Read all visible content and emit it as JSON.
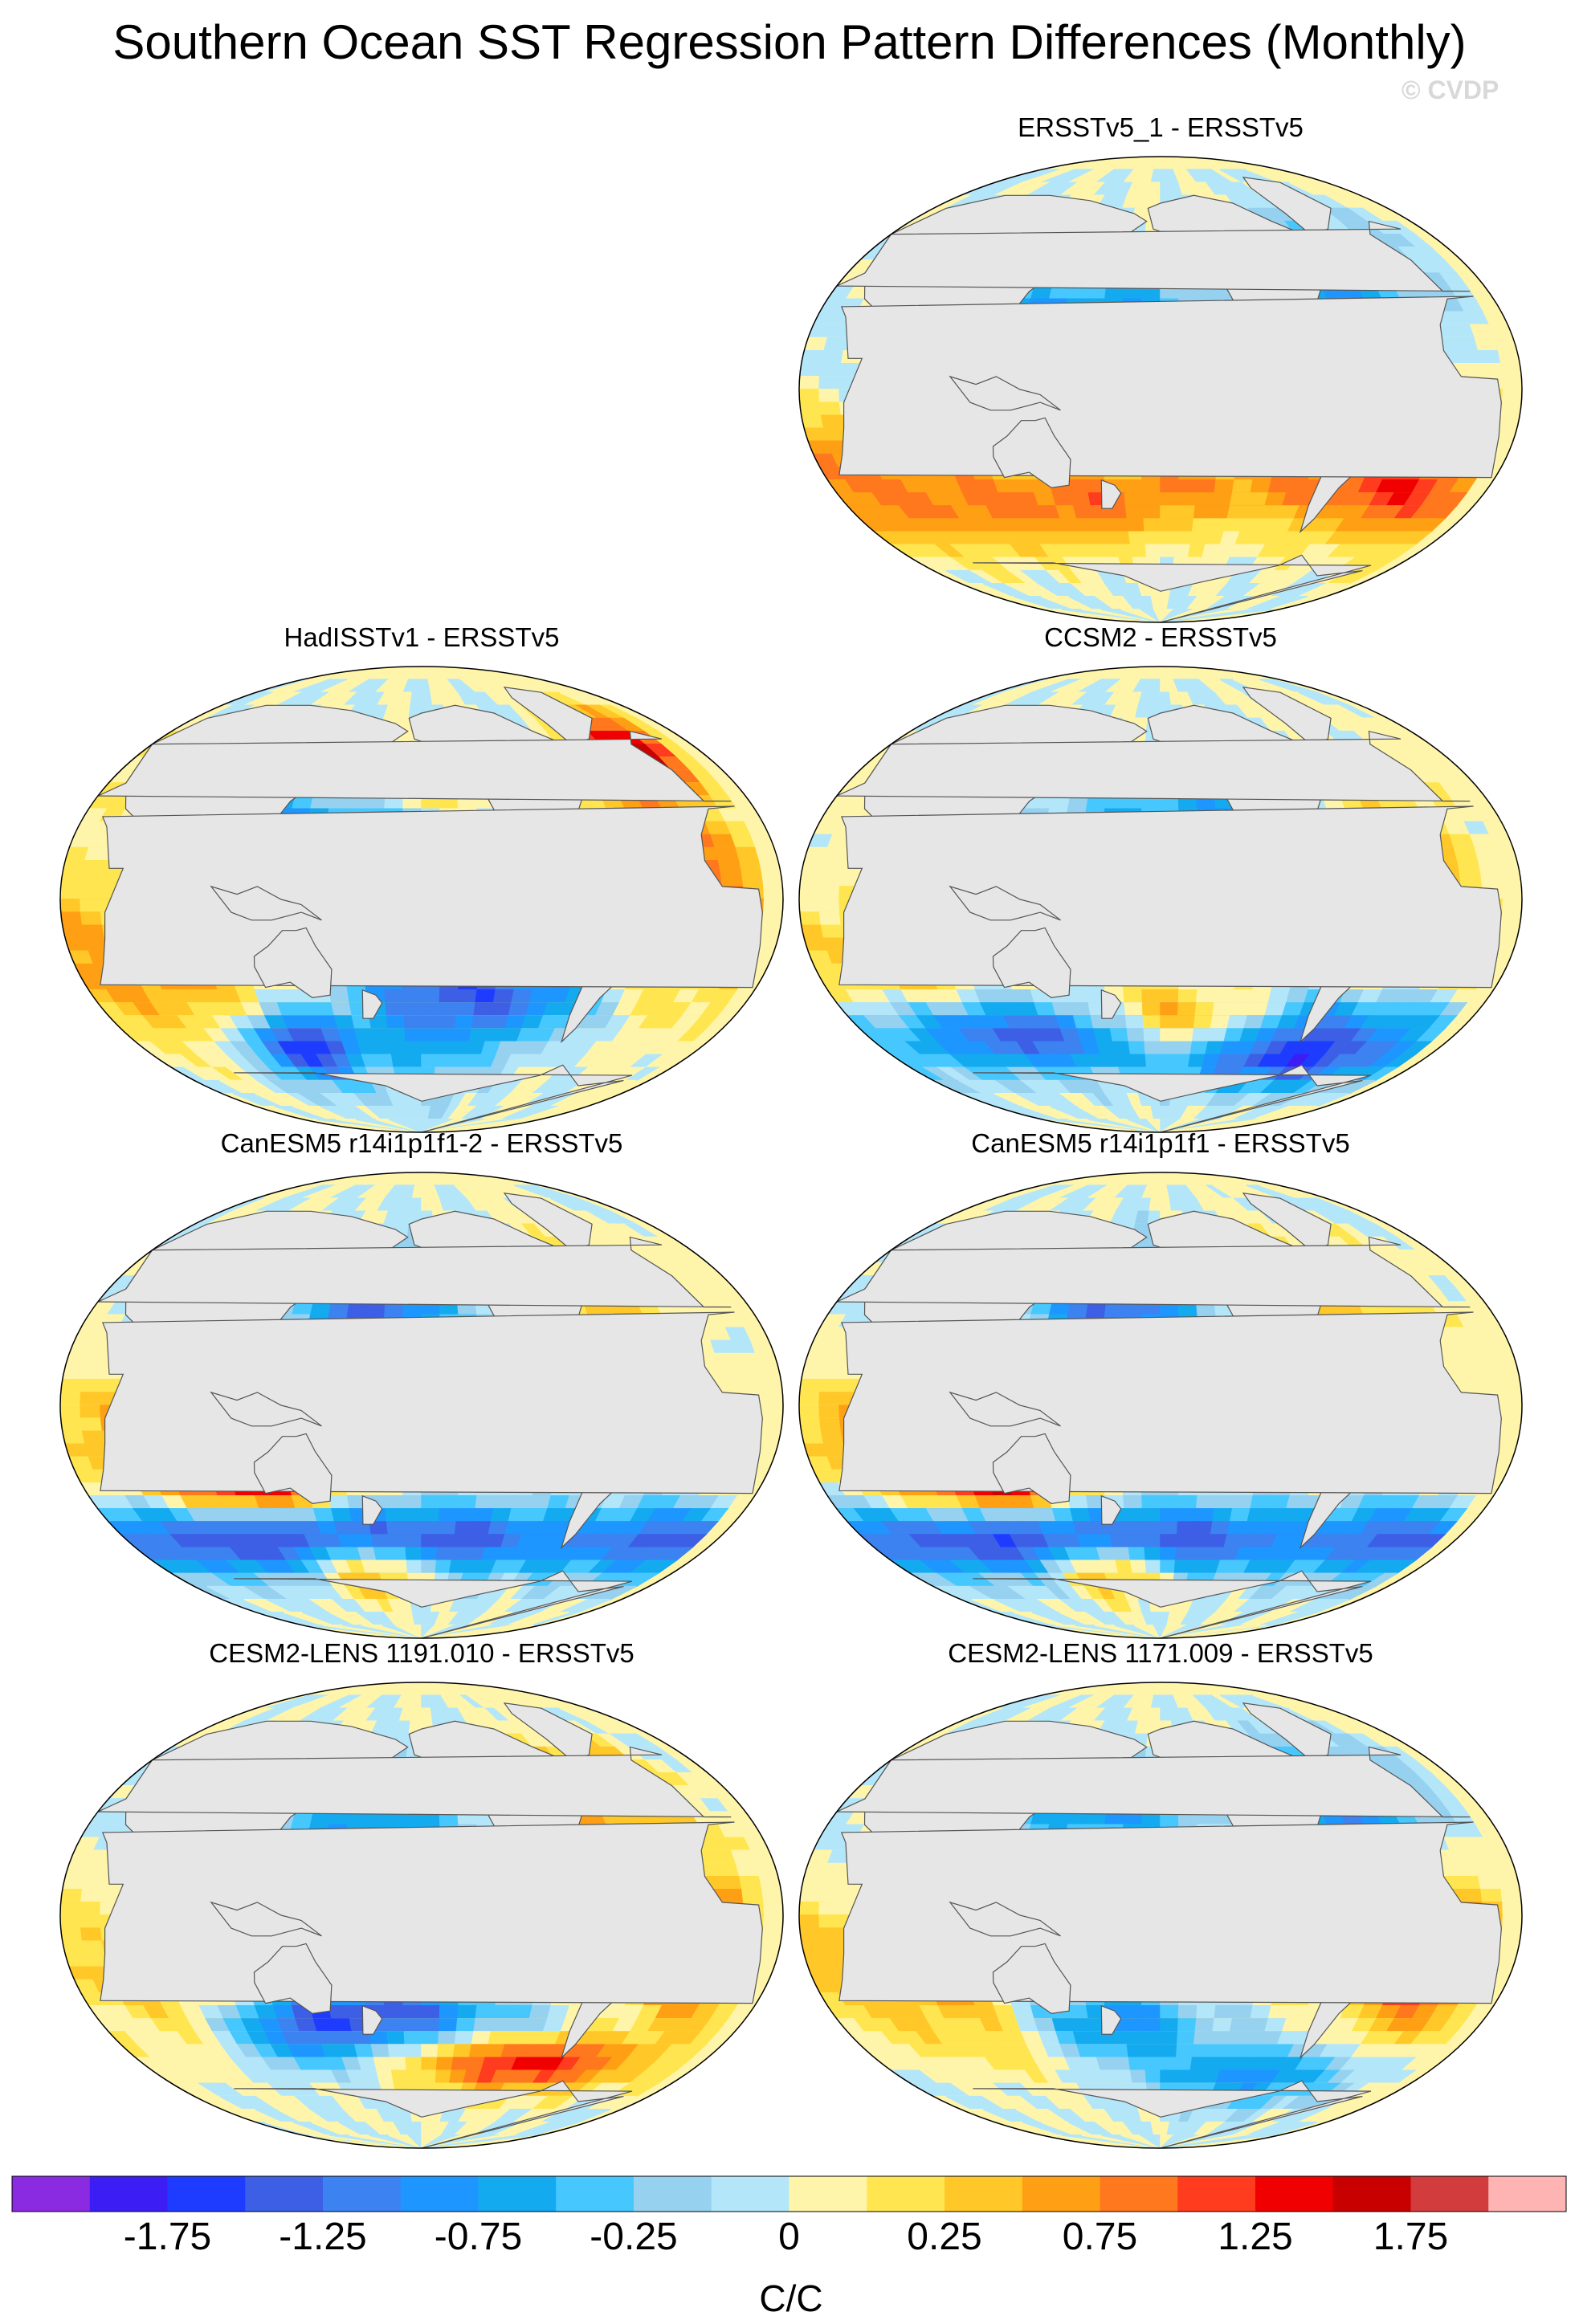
{
  "figure": {
    "title": "Southern Ocean SST Regression Pattern Differences (Monthly)",
    "credit": "© CVDP",
    "units": "C/C"
  },
  "panels": [
    {
      "id": "p1",
      "title": "ERSSTv5_1 - ERSSTv5"
    },
    {
      "id": "p2",
      "title": "HadISSTv1 - ERSSTv5"
    },
    {
      "id": "p3",
      "title": "CCSM2 - ERSSTv5"
    },
    {
      "id": "p4",
      "title": "CanESM5 r14i1p1f1-2 - ERSSTv5"
    },
    {
      "id": "p5",
      "title": "CanESM5 r14i1p1f1 - ERSSTv5"
    },
    {
      "id": "p6",
      "title": "CESM2-LENS 1191.010 - ERSSTv5"
    },
    {
      "id": "p7",
      "title": "CESM2-LENS 1171.009 - ERSSTv5"
    }
  ],
  "colorbar": {
    "colors": [
      "#8a2be2",
      "#3c1ef5",
      "#1e3cff",
      "#3c5fe6",
      "#3c82f0",
      "#1e96ff",
      "#14aaf0",
      "#46c8ff",
      "#96d2f0",
      "#b4e6fa",
      "#fff5aa",
      "#ffe650",
      "#ffc828",
      "#ffa014",
      "#ff781e",
      "#ff3c1e",
      "#f00000",
      "#c80000",
      "#d23c3c",
      "#ffb4b4"
    ],
    "label_values": [
      "-1.75",
      "-1.25",
      "-0.75",
      "-0.25",
      "0",
      "0.25",
      "0.75",
      "1.25",
      "1.75"
    ]
  }
}
